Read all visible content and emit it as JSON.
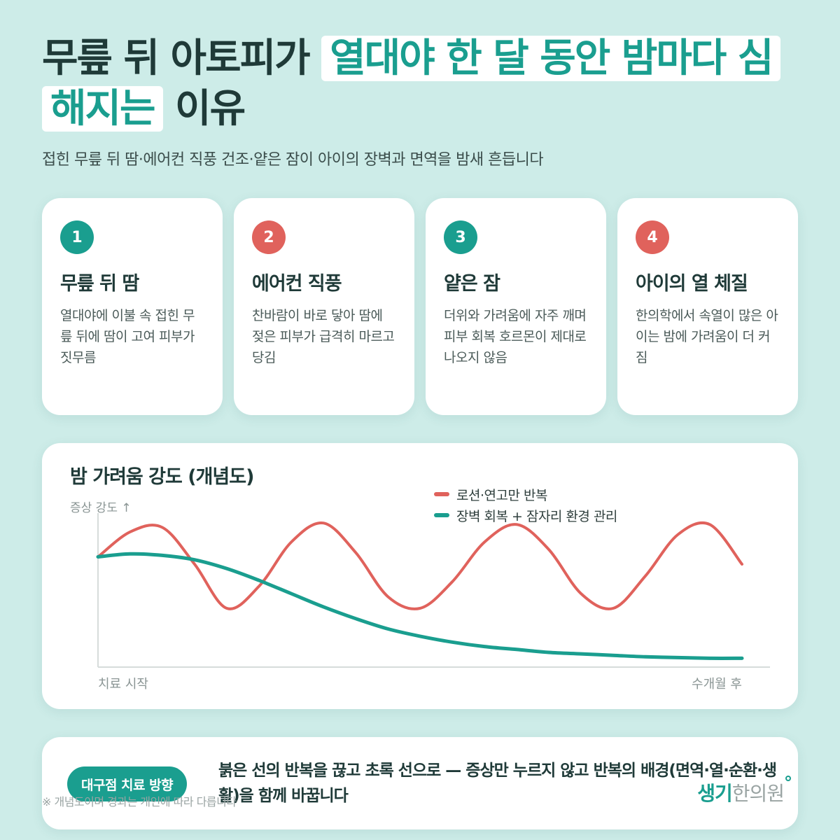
{
  "title": {
    "part1": "무릎 뒤 아토피가 ",
    "highlight": "열대야 한 달 동안 밤마다 심해지는",
    "part2": " 이유"
  },
  "subtitle": "접힌 무릎 뒤 땀·에어컨 직풍 건조·얕은 잠이 아이의 장벽과 면역을 밤새 흔듭니다",
  "cards": [
    {
      "num": "1",
      "title": "무릎 뒤 땀",
      "desc": "열대야에 이불 속 접힌 무릎 뒤에 땀이 고여 피부가 짓무름",
      "color": "teal"
    },
    {
      "num": "2",
      "title": "에어컨 직풍",
      "desc": "찬바람이 바로 닿아 땀에 젖은 피부가 급격히 마르고 당김",
      "color": "red"
    },
    {
      "num": "3",
      "title": "얕은 잠",
      "desc": "더위와 가려움에 자주 깨며 피부 회복 호르몬이 제대로 나오지 않음",
      "color": "teal"
    },
    {
      "num": "4",
      "title": "아이의 열 체질",
      "desc": "한의학에서 속열이 많은 아이는 밤에 가려움이 더 커짐",
      "color": "red"
    }
  ],
  "colors": {
    "teal": "#1a9e8f",
    "red": "#e0625c"
  },
  "chart": {
    "title": "밤 가려움 강도 (개념도)",
    "ylabel": "증상 강도 ↑",
    "x_start": "치료 시작",
    "x_end": "수개월 후"
  },
  "chart_data": {
    "type": "line",
    "title": "밤 가려움 강도 (개념도)",
    "ylabel": "증상 강도 ↑",
    "xlabel": "",
    "x_ticks": [
      "치료 시작",
      "수개월 후"
    ],
    "x": [
      0,
      0.05,
      0.1,
      0.15,
      0.2,
      0.25,
      0.3,
      0.35,
      0.4,
      0.45,
      0.5,
      0.55,
      0.6,
      0.65,
      0.7,
      0.75,
      0.8,
      0.85,
      0.9,
      0.95,
      1.0
    ],
    "xlim": [
      0,
      1
    ],
    "ylim": [
      0,
      1
    ],
    "legend": "top-right",
    "grid": false,
    "series": [
      {
        "name": "로션·연고만 반복",
        "color": "#e0625c",
        "values": [
          0.75,
          0.92,
          0.95,
          0.7,
          0.4,
          0.55,
          0.85,
          0.98,
          0.78,
          0.48,
          0.4,
          0.58,
          0.85,
          0.97,
          0.8,
          0.5,
          0.4,
          0.62,
          0.9,
          0.97,
          0.7
        ]
      },
      {
        "name": "장벽 회복 + 잠자리 환경 관리",
        "color": "#1a9e8f",
        "values": [
          0.75,
          0.77,
          0.76,
          0.73,
          0.67,
          0.59,
          0.5,
          0.41,
          0.33,
          0.26,
          0.21,
          0.17,
          0.14,
          0.12,
          0.1,
          0.09,
          0.08,
          0.07,
          0.065,
          0.06,
          0.06
        ]
      }
    ]
  },
  "bottom": {
    "pill": "대구점 치료 방향",
    "message": "붉은 선의 반복을 끊고 초록 선으로 — 증상만 누르지 않고 반복의 배경(면역·열·순환·생활)을 함께 바꿉니다"
  },
  "footnote": "※ 개념도이며 경과는 개인에 따라 다릅니다",
  "logo": {
    "part1": "생기",
    "part2": "한의원"
  }
}
